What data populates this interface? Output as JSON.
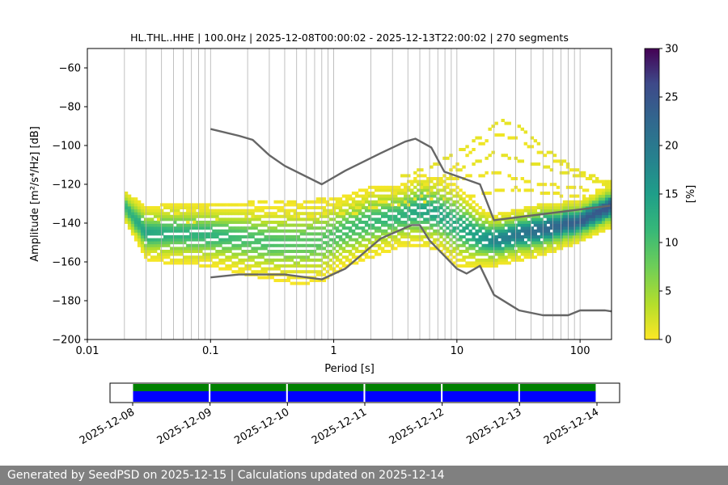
{
  "chart_data": [
    {
      "type": "heatmap",
      "title": "HL.THL..HHE | 100.0Hz | 2025-12-08T00:00:02 - 2025-12-13T22:00:02 | 270 segments",
      "xlabel": "Period [s]",
      "ylabel": "Amplitude [m²/s⁴/Hz] [dB]",
      "x_scale": "log",
      "xlim": [
        0.01,
        180
      ],
      "ylim": [
        -200,
        -50
      ],
      "x_ticks": [
        {
          "value": 0.01,
          "label": "0.01"
        },
        {
          "value": 0.1,
          "label": "0.1"
        },
        {
          "value": 1,
          "label": "1"
        },
        {
          "value": 10,
          "label": "10"
        },
        {
          "value": 100,
          "label": "100"
        }
      ],
      "y_ticks": [
        {
          "value": -60,
          "label": "−60"
        },
        {
          "value": -80,
          "label": "−80"
        },
        {
          "value": -100,
          "label": "−100"
        },
        {
          "value": -120,
          "label": "−120"
        },
        {
          "value": -140,
          "label": "−140"
        },
        {
          "value": -160,
          "label": "−160"
        },
        {
          "value": -180,
          "label": "−180"
        },
        {
          "value": -200,
          "label": "−200"
        }
      ],
      "grid": "vertical minor log lines",
      "colorbar": {
        "label": "[%]",
        "range": [
          0,
          30
        ],
        "ticks": [
          {
            "value": 0,
            "label": "0"
          },
          {
            "value": 5,
            "label": "5"
          },
          {
            "value": 10,
            "label": "10"
          },
          {
            "value": 15,
            "label": "15"
          },
          {
            "value": 20,
            "label": "20"
          },
          {
            "value": 25,
            "label": "25"
          },
          {
            "value": 30,
            "label": "30"
          }
        ],
        "colormap": "viridis_r"
      },
      "density_profile": {
        "periods": [
          0.02,
          0.03,
          0.05,
          0.1,
          0.2,
          0.3,
          0.5,
          0.8,
          1.2,
          2,
          3.5,
          5,
          7,
          10,
          15,
          20,
          30,
          50,
          100,
          180
        ],
        "mode_db": [
          -131,
          -145,
          -145,
          -146,
          -148,
          -150,
          -150,
          -149,
          -144,
          -139,
          -136,
          -133,
          -135,
          -141,
          -147,
          -149,
          -146,
          -143,
          -139,
          -131
        ],
        "spread_db": [
          3,
          5,
          6,
          6,
          7,
          7,
          8,
          8,
          7,
          7,
          6,
          7,
          7,
          8,
          6,
          5,
          5,
          5,
          4,
          4
        ],
        "mode_percent": [
          12,
          14,
          12,
          12,
          10,
          10,
          9,
          9,
          10,
          11,
          12,
          14,
          14,
          13,
          15,
          18,
          20,
          22,
          24,
          25
        ],
        "outlier_tracks": [
          {
            "periods": [
              0.03,
              0.1,
              0.3,
              1,
              3,
              8,
              20,
              50,
              180
            ],
            "db": [
              -139,
              -131,
              -129,
              -128,
              -125,
              -118,
              -114,
              -120,
              -124
            ]
          },
          {
            "periods": [
              0.05,
              0.2,
              0.6,
              2,
              5,
              10,
              20,
              40,
              100,
              180
            ],
            "db": [
              -141,
              -137,
              -135,
              -132,
              -127,
              -113,
              -104,
              -109,
              -116,
              -121
            ]
          },
          {
            "periods": [
              1,
              3,
              6,
              10,
              20,
              30,
              60,
              120,
              180
            ],
            "db": [
              -131,
              -128,
              -122,
              -109,
              -94,
              -96,
              -107,
              -117,
              -120
            ]
          },
          {
            "periods": [
              3,
              6,
              10,
              15,
              22,
              30,
              50,
              100,
              180
            ],
            "db": [
              -118,
              -111,
              -104,
              -96,
              -87,
              -89,
              -101,
              -114,
              -119
            ]
          },
          {
            "periods": [
              0.4,
              1,
              2,
              4,
              8,
              15,
              30,
              80,
              180
            ],
            "db": [
              -137,
              -135,
              -134,
              -130,
              -127,
              -125,
              -122,
              -126,
              -128
            ]
          }
        ]
      },
      "series": [
        {
          "periods": [
            0.1,
            0.17,
            0.22,
            0.3,
            0.4,
            0.8,
            1.24,
            2.4,
            3.8,
            4.6,
            6.2,
            7.9,
            15.4,
            20,
            176
          ],
          "values": [
            -91.5,
            -95,
            -97.1,
            -105,
            -110.5,
            -120,
            -113,
            -104,
            -98,
            -96.5,
            -101,
            -113.5,
            -120,
            -138.5,
            -131
          ]
        },
        {
          "periods": [
            0.1,
            0.17,
            0.4,
            0.8,
            1.24,
            2.4,
            4.3,
            5,
            6,
            10,
            12,
            15.4,
            20,
            32,
            50,
            80,
            100,
            160,
            180
          ],
          "values": [
            -168,
            -166.5,
            -166.5,
            -169,
            -163.5,
            -148,
            -141,
            -141,
            -149,
            -163.5,
            -166,
            -162,
            -177,
            -185,
            -187.5,
            -187.5,
            -185,
            -185,
            -185.5
          ]
        }
      ]
    },
    {
      "type": "timeline",
      "x_ticks": [
        "2025-12-08",
        "2025-12-09",
        "2025-12-10",
        "2025-12-11",
        "2025-12-12",
        "2025-12-13",
        "2025-12-14"
      ],
      "bar_colors": {
        "top": "#008000",
        "bottom": "#0000ff"
      },
      "coverage_days": [
        {
          "start": "2025-12-08",
          "end": "2025-12-08T23:59"
        },
        {
          "start": "2025-12-09",
          "end": "2025-12-09T23:59"
        },
        {
          "start": "2025-12-10",
          "end": "2025-12-10T23:59"
        },
        {
          "start": "2025-12-11",
          "end": "2025-12-11T23:59"
        },
        {
          "start": "2025-12-12",
          "end": "2025-12-12T23:59"
        },
        {
          "start": "2025-12-13",
          "end": "2025-12-13T23:59"
        }
      ]
    }
  ],
  "footer": {
    "text": "Generated by SeedPSD on 2025-12-15 | Calculations updated on 2025-12-14",
    "background": "#808080",
    "color": "#ffffff"
  },
  "colors": {
    "noise_model_line": "#666666",
    "grid": "#b0b0b0"
  }
}
